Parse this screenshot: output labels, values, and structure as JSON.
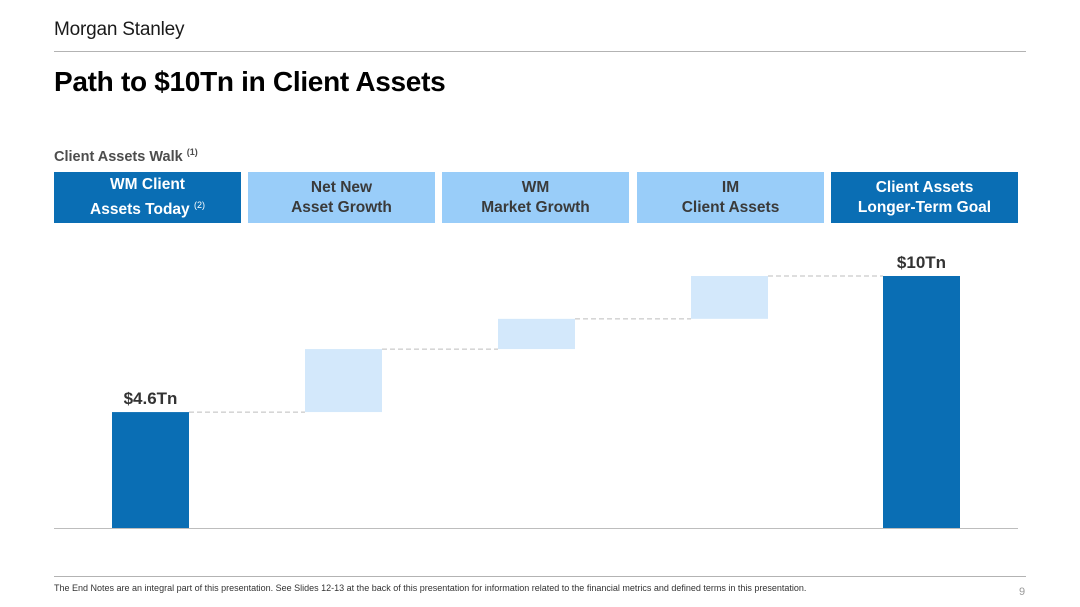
{
  "header": {
    "logo_text": "Morgan Stanley",
    "title": "Path to $10Tn in Client Assets"
  },
  "subtitle": {
    "text": "Client Assets Walk",
    "note": "(1)"
  },
  "columns": [
    {
      "line1": "WM Client",
      "line2": "Assets Today",
      "note": "(2)",
      "style": "dark"
    },
    {
      "line1": "Net New",
      "line2": "Asset Growth",
      "note": "",
      "style": "light"
    },
    {
      "line1": "WM",
      "line2": "Market Growth",
      "note": "",
      "style": "light"
    },
    {
      "line1": "IM",
      "line2": "Client Assets",
      "note": "",
      "style": "light"
    },
    {
      "line1": "Client Assets",
      "line2": "Longer-Term Goal",
      "note": "",
      "style": "dark"
    }
  ],
  "chart_data": {
    "type": "bar",
    "subtype": "waterfall",
    "unit": "Tn",
    "categories": [
      "WM Client Assets Today",
      "Net New Asset Growth",
      "WM Market Growth",
      "IM Client Assets",
      "Client Assets Longer-Term Goal"
    ],
    "bars": [
      {
        "kind": "total",
        "start": 0,
        "end": 4.6,
        "label": "$4.6Tn"
      },
      {
        "kind": "increment",
        "start": 4.6,
        "end": 7.1,
        "label": ""
      },
      {
        "kind": "increment",
        "start": 7.1,
        "end": 8.3,
        "label": ""
      },
      {
        "kind": "increment",
        "start": 8.3,
        "end": 10.0,
        "label": ""
      },
      {
        "kind": "total",
        "start": 0,
        "end": 10.0,
        "label": "$10Tn"
      }
    ],
    "ylim": [
      0,
      10
    ],
    "colors": {
      "total": "#0a6eb4",
      "increment": "#d3e8fb",
      "connector": "#bdbdbd",
      "baseline": "#bdbdbd"
    }
  },
  "footer": {
    "note": "The End Notes are an integral part of this presentation. See Slides 12-13 at the back of this presentation for information related to the financial metrics and defined terms in this presentation.",
    "page": "9"
  }
}
